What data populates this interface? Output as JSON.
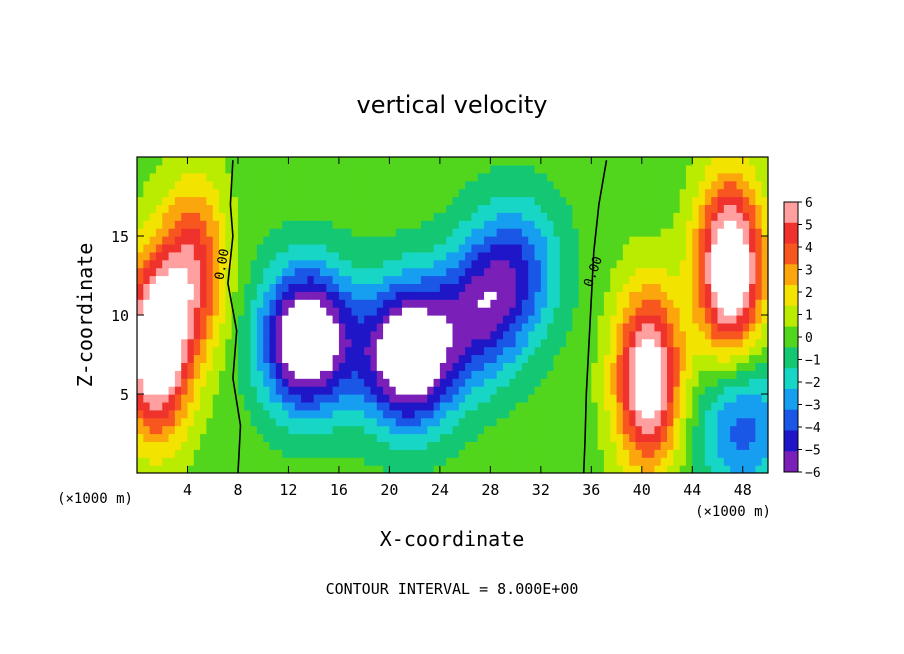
{
  "chart_data": {
    "type": "heatmap",
    "title": "vertical velocity",
    "xlabel": "X-coordinate",
    "ylabel": "Z-coordinate",
    "x_unit": "(×1000 m)",
    "x_unit_right": "(×1000 m)",
    "xlim": [
      0,
      50
    ],
    "ylim": [
      0,
      20
    ],
    "x_ticks": [
      4,
      8,
      12,
      16,
      20,
      24,
      28,
      32,
      36,
      40,
      44,
      48
    ],
    "y_ticks": [
      5,
      10,
      15
    ],
    "colorbar": {
      "levels": [
        "6",
        "5",
        "4",
        "3",
        "2",
        "1",
        "0",
        "−1",
        "−2",
        "−3",
        "−4",
        "−5",
        "−6"
      ],
      "colors": [
        "#ff9f9f",
        "#f0322d",
        "#f8561f",
        "#fca60d",
        "#f2e400",
        "#b9ec00",
        "#52d61d",
        "#14c873",
        "#18d6c6",
        "#169ff0",
        "#1a57e6",
        "#1f16c8",
        "#7a1fb8"
      ],
      "over_color": "#ffffff",
      "under_color": "#ffffff"
    },
    "contour_labels": [
      "0.00",
      "0.00"
    ],
    "annotation": "CONTOUR INTERVAL = 8.000E+00",
    "features": [
      {
        "kind": "updraft",
        "x": 1.5,
        "z": 8,
        "w": 9
      },
      {
        "kind": "updraft",
        "x": 4.5,
        "z": 13,
        "w": 5
      },
      {
        "kind": "downdraft",
        "x": 13.5,
        "z": 8.5,
        "w": -9
      },
      {
        "kind": "downdraft",
        "x": 21.5,
        "z": 7.5,
        "w": -9
      },
      {
        "kind": "downdraft",
        "x": 27,
        "z": 10,
        "w": -4.5
      },
      {
        "kind": "downdraft",
        "x": 30,
        "z": 13,
        "w": -4
      },
      {
        "kind": "updraft",
        "x": 40.5,
        "z": 6,
        "w": 8
      },
      {
        "kind": "updraft",
        "x": 47,
        "z": 13,
        "w": 9
      },
      {
        "kind": "downdraft",
        "x": 48,
        "z": 3,
        "w": -4
      }
    ]
  }
}
